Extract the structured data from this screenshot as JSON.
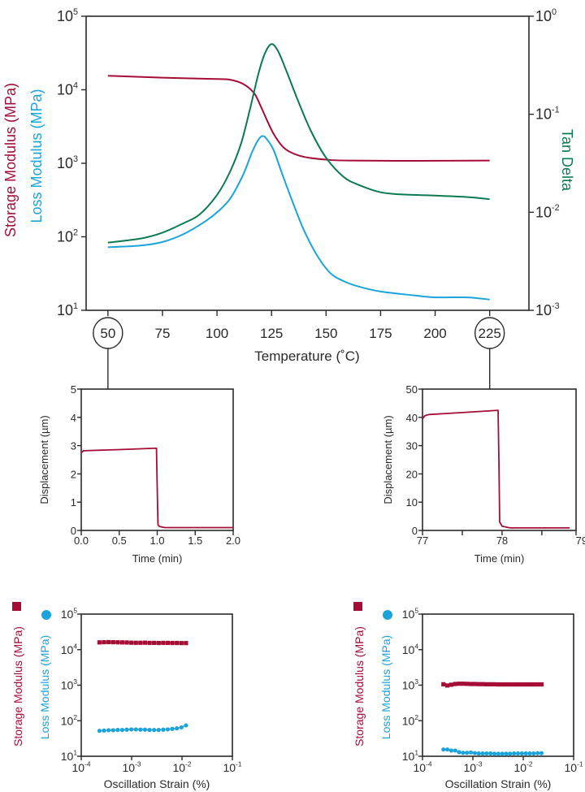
{
  "colors": {
    "storage": "#a50d37",
    "loss": "#1ba3dc",
    "tan": "#0b7a50",
    "axis": "#2a2a2a"
  },
  "chart_data": [
    {
      "id": "dma-temperature-ramp",
      "type": "line",
      "xlabel": "Temperature (˚C)",
      "ylabel_left": [
        "Storage Modulus (MPa)",
        "Loss Modulus (MPa)"
      ],
      "ylabel_right": "Tan Delta",
      "xlim": [
        40,
        243
      ],
      "ylim_left_log10": [
        1,
        5
      ],
      "ylim_right_log10": [
        -3,
        0
      ],
      "xticks": [
        50,
        75,
        100,
        125,
        150,
        175,
        200,
        225
      ],
      "circled_ticks": [
        50,
        225
      ],
      "yticks_left": [
        {
          "b": "10",
          "e": "5"
        },
        {
          "b": "10",
          "e": "4"
        },
        {
          "b": "10",
          "e": "3"
        },
        {
          "b": "10",
          "e": "2"
        },
        {
          "b": "10",
          "e": "1"
        }
      ],
      "yticks_right": [
        {
          "b": "10",
          "e": "0"
        },
        {
          "b": "10",
          "e": "-1"
        },
        {
          "b": "10",
          "e": "-2"
        },
        {
          "b": "10",
          "e": "-3"
        }
      ],
      "series": [
        {
          "name": "Storage Modulus",
          "axis": "left",
          "color_key": "storage",
          "x": [
            50,
            75,
            100,
            106,
            112,
            117,
            120,
            123,
            126,
            130,
            134,
            140,
            150,
            160,
            190,
            225
          ],
          "y": [
            15500,
            14600,
            14000,
            13700,
            12000,
            9000,
            6000,
            3800,
            2500,
            1700,
            1400,
            1220,
            1120,
            1090,
            1080,
            1090
          ]
        },
        {
          "name": "Loss Modulus",
          "axis": "left",
          "color_key": "loss",
          "x": [
            50,
            65,
            75,
            85,
            95,
            100,
            106,
            112,
            116,
            119,
            121,
            123,
            126,
            130,
            135,
            140,
            146,
            152,
            158,
            165,
            175,
            190,
            200,
            215,
            225
          ],
          "y": [
            72,
            76,
            85,
            110,
            165,
            215,
            330,
            700,
            1400,
            2100,
            2350,
            2100,
            1500,
            700,
            280,
            120,
            55,
            32,
            25,
            21,
            18,
            16,
            15,
            15,
            14
          ]
        },
        {
          "name": "Tan Delta",
          "axis": "right",
          "color_key": "tan",
          "x": [
            50,
            65,
            75,
            85,
            92,
            100,
            106,
            111,
            115,
            119,
            122,
            125,
            128,
            132,
            137,
            143,
            150,
            158,
            165,
            175,
            185,
            200,
            215,
            225
          ],
          "y": [
            0.0049,
            0.0054,
            0.0062,
            0.0078,
            0.0095,
            0.015,
            0.026,
            0.05,
            0.11,
            0.26,
            0.42,
            0.52,
            0.44,
            0.27,
            0.14,
            0.068,
            0.036,
            0.023,
            0.019,
            0.016,
            0.0152,
            0.0148,
            0.0143,
            0.0136
          ]
        }
      ]
    },
    {
      "id": "creep-50C",
      "type": "line",
      "xlabel": "Time (min)",
      "ylabel": "Displacement  (µm)",
      "xlim": [
        0,
        2
      ],
      "ylim": [
        0,
        5
      ],
      "xticks": [
        "0.0",
        "0.5",
        "1.0",
        "1.5",
        "2.0"
      ],
      "xtick_values": [
        0,
        0.5,
        1,
        1.5,
        2
      ],
      "yticks": [
        "0",
        "1",
        "2",
        "3",
        "4",
        "5"
      ],
      "ytick_values": [
        0,
        1,
        2,
        3,
        4,
        5
      ],
      "series": [
        {
          "name": "Displacement",
          "color_key": "storage",
          "x": [
            0,
            0.03,
            0.5,
            0.99,
            1.0,
            1.01,
            1.03,
            1.1,
            1.5,
            2.0
          ],
          "y": [
            2.75,
            2.82,
            2.86,
            2.91,
            1.5,
            0.2,
            0.14,
            0.1,
            0.1,
            0.1
          ]
        }
      ]
    },
    {
      "id": "creep-225C",
      "type": "line",
      "xlabel": "Time (min)",
      "ylabel": "Displacement  (µm)",
      "xlim": [
        77,
        78.93
      ],
      "ylim": [
        0,
        50
      ],
      "xticks": [
        "77",
        "78",
        "79"
      ],
      "xtick_values": [
        77,
        78,
        79
      ],
      "xminor_values": [
        77.5,
        78.5
      ],
      "yticks": [
        "0",
        "10",
        "20",
        "30",
        "40",
        "50"
      ],
      "ytick_values": [
        0,
        10,
        20,
        30,
        40,
        50
      ],
      "series": [
        {
          "name": "Displacement",
          "color_key": "storage",
          "x": [
            77.0,
            77.03,
            77.08,
            77.5,
            77.95,
            77.96,
            77.97,
            78.0,
            78.1,
            78.5,
            78.85
          ],
          "y": [
            39.5,
            40.6,
            41.0,
            41.7,
            42.5,
            25,
            3,
            1.5,
            0.9,
            0.9,
            0.9
          ]
        }
      ]
    },
    {
      "id": "strain-sweep-50C",
      "type": "scatter",
      "xlabel": "Oscillation Strain (%)",
      "ylabel": [
        "Storage Modulus (MPa)",
        "Loss Modulus (MPa)"
      ],
      "xlim_log10": [
        -4,
        -1
      ],
      "ylim_log10": [
        1,
        5
      ],
      "xticks": [
        {
          "b": "10",
          "e": "-4"
        },
        {
          "b": "10",
          "e": "-3"
        },
        {
          "b": "10",
          "e": "-2"
        },
        {
          "b": "10",
          "e": "-1"
        }
      ],
      "yticks": [
        {
          "b": "10",
          "e": "5"
        },
        {
          "b": "10",
          "e": "4"
        },
        {
          "b": "10",
          "e": "3"
        },
        {
          "b": "10",
          "e": "2"
        },
        {
          "b": "10",
          "e": "1"
        }
      ],
      "strain_range": [
        0.00023,
        0.012
      ],
      "series": [
        {
          "name": "Storage Modulus",
          "marker": "square",
          "color_key": "storage",
          "y": [
            16000,
            16200,
            16300,
            16200,
            16100,
            16000,
            15900,
            15700,
            15600,
            15600,
            15700,
            15500,
            15500,
            15400,
            15500,
            15500,
            15400,
            15400,
            15300,
            15300
          ]
        },
        {
          "name": "Loss Modulus",
          "marker": "circle",
          "color_key": "loss",
          "y": [
            52,
            53,
            54,
            54,
            55,
            55,
            56,
            57,
            57,
            56,
            56,
            55,
            55,
            55,
            56,
            57,
            59,
            61,
            65,
            74
          ]
        }
      ]
    },
    {
      "id": "strain-sweep-225C",
      "type": "scatter",
      "xlabel": "Oscillation Strain (%)",
      "ylabel": [
        "Storage Modulus (MPa)",
        "Loss Modulus (MPa)"
      ],
      "xlim_log10": [
        -4,
        -1
      ],
      "ylim_log10": [
        1,
        5
      ],
      "xticks": [
        {
          "b": "10",
          "e": "-4"
        },
        {
          "b": "10",
          "e": "-3"
        },
        {
          "b": "10",
          "e": "-2"
        },
        {
          "b": "10",
          "e": "-1"
        }
      ],
      "yticks": [
        {
          "b": "10",
          "e": "5"
        },
        {
          "b": "10",
          "e": "4"
        },
        {
          "b": "10",
          "e": "3"
        },
        {
          "b": "10",
          "e": "2"
        },
        {
          "b": "10",
          "e": "1"
        }
      ],
      "strain_range": [
        0.00026,
        0.023
      ],
      "series": [
        {
          "name": "Storage Modulus",
          "marker": "square",
          "color_key": "storage",
          "y": [
            1060,
            980,
            1030,
            1080,
            1100,
            1100,
            1090,
            1080,
            1080,
            1070,
            1070,
            1060,
            1060,
            1060,
            1050,
            1050,
            1050,
            1050,
            1050,
            1050,
            1050,
            1050,
            1050,
            1050,
            1050,
            1050
          ]
        },
        {
          "name": "Loss Modulus",
          "marker": "circle",
          "color_key": "loss",
          "y": [
            15.5,
            15.5,
            14.5,
            14.5,
            13,
            12.5,
            12.5,
            12.8,
            12.3,
            12,
            12,
            12,
            12,
            11.8,
            11.8,
            11.8,
            11.8,
            11.8,
            12,
            12,
            12,
            12,
            12,
            12,
            12.2,
            12.2
          ]
        }
      ]
    }
  ]
}
